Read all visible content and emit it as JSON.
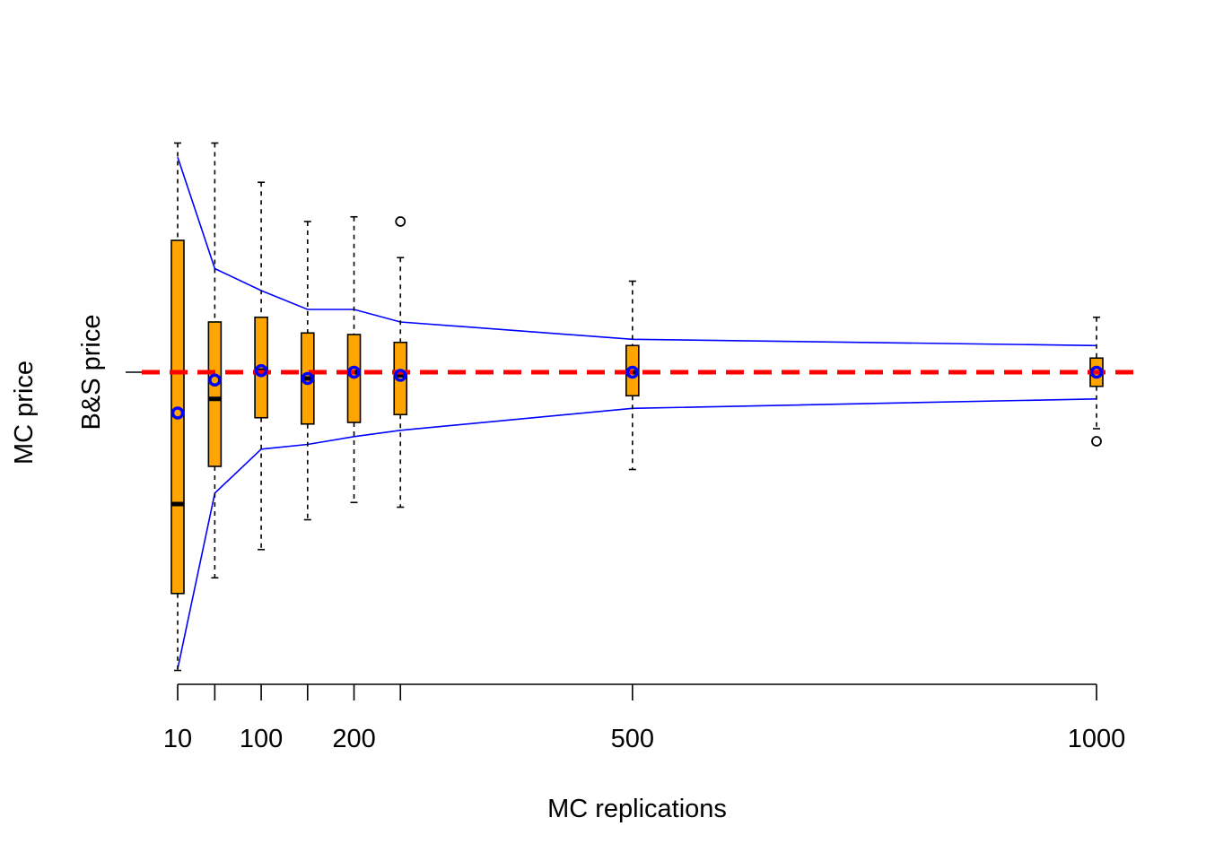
{
  "chart_data": {
    "type": "box",
    "xlabel": "MC replications",
    "ylabel": "MC price",
    "reference_line": {
      "label": "B&S price",
      "value": 0,
      "color": "#ff0000",
      "style": "dashed"
    },
    "x_tick_labels": [
      {
        "x": 10,
        "label": "10"
      },
      {
        "x": 50,
        "label": ""
      },
      {
        "x": 100,
        "label": "100"
      },
      {
        "x": 150,
        "label": ""
      },
      {
        "x": 200,
        "label": "200"
      },
      {
        "x": 250,
        "label": ""
      },
      {
        "x": 500,
        "label": "500"
      },
      {
        "x": 1000,
        "label": "1000"
      }
    ],
    "xlim": [
      10,
      1000
    ],
    "ylim": [
      -1.0,
      1.0
    ],
    "boxes": [
      {
        "x": 10,
        "whisker_low": -0.95,
        "q1": -0.705,
        "median": -0.42,
        "q3": 0.42,
        "whisker_high": 0.73,
        "mean": -0.13,
        "outliers": []
      },
      {
        "x": 50,
        "whisker_low": -0.655,
        "q1": -0.3,
        "median": -0.085,
        "q3": 0.16,
        "whisker_high": 0.73,
        "mean": -0.025,
        "outliers": []
      },
      {
        "x": 100,
        "whisker_low": -0.565,
        "q1": -0.145,
        "median": 0.005,
        "q3": 0.175,
        "whisker_high": 0.605,
        "mean": 0.005,
        "outliers": []
      },
      {
        "x": 150,
        "whisker_low": -0.47,
        "q1": -0.165,
        "median": -0.02,
        "q3": 0.125,
        "whisker_high": 0.48,
        "mean": -0.02,
        "outliers": []
      },
      {
        "x": 200,
        "whisker_low": -0.415,
        "q1": -0.16,
        "median": 0.0,
        "q3": 0.12,
        "whisker_high": 0.495,
        "mean": 0.0,
        "outliers": []
      },
      {
        "x": 250,
        "whisker_low": -0.43,
        "q1": -0.135,
        "median": -0.01,
        "q3": 0.095,
        "whisker_high": 0.365,
        "mean": -0.01,
        "outliers": [
          0.48
        ]
      },
      {
        "x": 500,
        "whisker_low": -0.31,
        "q1": -0.075,
        "median": 0.0,
        "q3": 0.085,
        "whisker_high": 0.29,
        "mean": 0.0,
        "outliers": []
      },
      {
        "x": 1000,
        "whisker_low": -0.18,
        "q1": -0.045,
        "median": 0.0,
        "q3": 0.045,
        "whisker_high": 0.175,
        "mean": 0.0,
        "outliers": [
          -0.22
        ]
      }
    ],
    "bounds": {
      "color": "#0000ff",
      "upper": [
        [
          10,
          0.685
        ],
        [
          50,
          0.33
        ],
        [
          100,
          0.26
        ],
        [
          150,
          0.2
        ],
        [
          200,
          0.2
        ],
        [
          250,
          0.16
        ],
        [
          500,
          0.105
        ],
        [
          1000,
          0.085
        ]
      ],
      "lower": [
        [
          10,
          -0.945
        ],
        [
          50,
          -0.385
        ],
        [
          100,
          -0.245
        ],
        [
          150,
          -0.23
        ],
        [
          200,
          -0.205
        ],
        [
          250,
          -0.185
        ],
        [
          500,
          -0.115
        ],
        [
          1000,
          -0.085
        ]
      ]
    },
    "colors": {
      "box_fill": "#ffa500",
      "mean_point": "#0000ff",
      "reference": "#ff0000"
    }
  }
}
